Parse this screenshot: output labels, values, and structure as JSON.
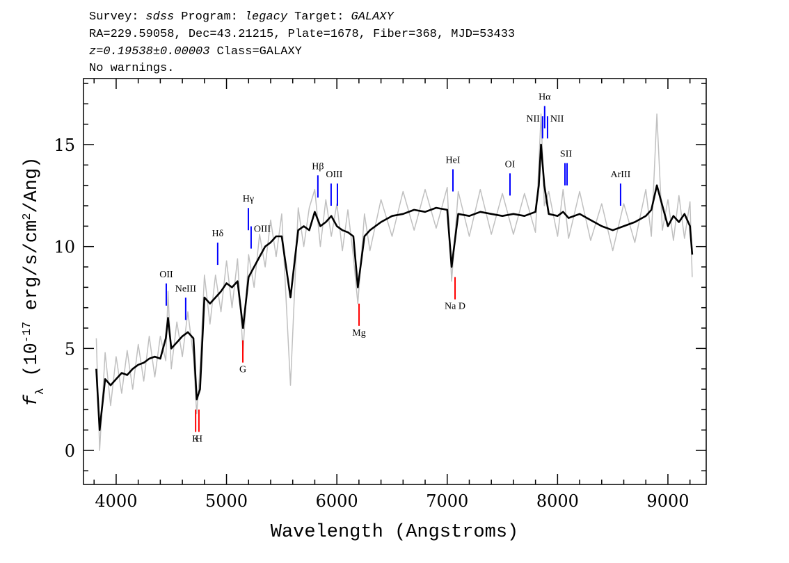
{
  "chart_data": {
    "type": "line",
    "header": {
      "survey_label": "Survey:",
      "survey": "sdss",
      "program_label": "Program:",
      "program": "legacy",
      "target_label": "Target:",
      "target": "GALAXY",
      "line2": "RA=229.59058, Dec=43.21215, Plate=1678, Fiber=368, MJD=53433",
      "redshift": "z=0.19538±0.00003",
      "class": "Class=GALAXY",
      "warnings": "No warnings."
    },
    "xlabel": "Wavelength (Angstroms)",
    "ylabel": [
      [
        "f",
        "italic"
      ],
      [
        "λ",
        "sub"
      ],
      [
        " (10",
        "normal"
      ],
      [
        "-17",
        "sup"
      ],
      [
        " erg/s/cm",
        "normal"
      ],
      [
        "2",
        "sup"
      ],
      [
        "/Ang)",
        "normal"
      ]
    ],
    "xlim": [
      3704,
      9347
    ],
    "ylim": [
      -1.67,
      18.24
    ],
    "xticks": [
      4000,
      5000,
      6000,
      7000,
      8000,
      9000
    ],
    "yticks": [
      0,
      5,
      10,
      15
    ],
    "x_minor_ticks": [
      3800,
      4200,
      4400,
      4600,
      4800,
      5200,
      5400,
      5600,
      5800,
      6200,
      6400,
      6600,
      6800,
      7200,
      7400,
      7600,
      7800,
      8200,
      8400,
      8600,
      8800,
      9200
    ],
    "y_minor_ticks": [
      -1,
      1,
      2,
      3,
      4,
      6,
      7,
      8,
      9,
      11,
      12,
      13,
      14,
      16,
      17,
      18
    ],
    "x": [
      3820,
      3850,
      3900,
      3950,
      4000,
      4050,
      4100,
      4150,
      4200,
      4250,
      4300,
      4350,
      4400,
      4450,
      4470,
      4500,
      4550,
      4600,
      4650,
      4700,
      4730,
      4760,
      4800,
      4850,
      4900,
      4950,
      5000,
      5050,
      5100,
      5150,
      5200,
      5250,
      5300,
      5350,
      5400,
      5450,
      5500,
      5580,
      5650,
      5700,
      5750,
      5800,
      5850,
      5900,
      5950,
      6000,
      6050,
      6100,
      6150,
      6190,
      6250,
      6300,
      6400,
      6500,
      6600,
      6700,
      6800,
      6900,
      7000,
      7040,
      7100,
      7200,
      7300,
      7400,
      7500,
      7600,
      7700,
      7800,
      7830,
      7850,
      7880,
      7920,
      8000,
      8050,
      8100,
      8200,
      8300,
      8400,
      8500,
      8600,
      8700,
      8800,
      8850,
      8900,
      8950,
      9000,
      9050,
      9100,
      9150,
      9200,
      9220
    ],
    "series": [
      {
        "color": "#c0c0c0",
        "values": [
          5.5,
          0.0,
          4.8,
          2.2,
          4.6,
          2.8,
          4.9,
          3.0,
          5.2,
          3.4,
          5.6,
          3.6,
          5.6,
          4.4,
          7.8,
          4.0,
          6.3,
          4.6,
          6.8,
          4.6,
          1.8,
          4.0,
          8.6,
          6.2,
          8.6,
          6.8,
          9.3,
          7.0,
          9.4,
          4.8,
          9.6,
          8.0,
          10.6,
          9.0,
          11.3,
          9.5,
          11.6,
          3.2,
          11.9,
          10.0,
          11.9,
          12.8,
          10.0,
          12.3,
          10.5,
          12.1,
          9.8,
          11.8,
          9.5,
          7.2,
          11.6,
          9.8,
          12.3,
          10.5,
          12.7,
          10.8,
          12.8,
          10.9,
          12.9,
          8.3,
          12.7,
          10.5,
          12.8,
          10.6,
          12.6,
          10.6,
          12.6,
          10.7,
          14.0,
          16.5,
          12.0,
          12.7,
          10.5,
          12.8,
          10.4,
          12.7,
          10.3,
          12.1,
          9.8,
          12.1,
          10.2,
          12.8,
          10.5,
          16.5,
          10.8,
          12.3,
          10.3,
          12.5,
          10.4,
          12.2,
          8.5
        ]
      },
      {
        "color": "#000000",
        "values": [
          4.0,
          1.0,
          3.5,
          3.2,
          3.5,
          3.8,
          3.7,
          4.0,
          4.2,
          4.3,
          4.5,
          4.6,
          4.5,
          5.5,
          6.5,
          5.0,
          5.3,
          5.6,
          5.8,
          5.5,
          2.5,
          3.0,
          7.5,
          7.2,
          7.5,
          7.8,
          8.2,
          8.0,
          8.3,
          6.0,
          8.5,
          9.0,
          9.5,
          10.0,
          10.2,
          10.5,
          10.5,
          7.5,
          10.8,
          11.0,
          10.8,
          11.7,
          11.0,
          11.2,
          11.5,
          11.0,
          10.8,
          10.7,
          10.5,
          8.0,
          10.5,
          10.8,
          11.2,
          11.5,
          11.6,
          11.8,
          11.7,
          11.9,
          11.8,
          9.0,
          11.6,
          11.5,
          11.7,
          11.6,
          11.5,
          11.6,
          11.5,
          11.7,
          13.0,
          15.0,
          13.0,
          11.6,
          11.5,
          11.7,
          11.4,
          11.6,
          11.3,
          11.0,
          10.8,
          11.0,
          11.2,
          11.5,
          11.8,
          13.0,
          12.0,
          11.0,
          11.5,
          11.2,
          11.6,
          11.0,
          9.6
        ]
      }
    ],
    "emission_color": "#0000ff",
    "absorption_color": "#ff0000",
    "lines": [
      {
        "label": "OII",
        "kind": "emission",
        "x": [
          4454
        ],
        "y": 7.1
      },
      {
        "label": "NeIII",
        "kind": "emission",
        "x": [
          4630
        ],
        "y": 6.4
      },
      {
        "label": "Hδ",
        "kind": "emission",
        "x": [
          4920
        ],
        "y": 9.1
      },
      {
        "label": "Hγ",
        "kind": "emission",
        "x": [
          5198
        ],
        "y": 10.8
      },
      {
        "label": "OIII",
        "kind": "emission",
        "x": [
          5223
        ],
        "y": 9.9,
        "align": "right"
      },
      {
        "label": "Hβ",
        "kind": "emission",
        "x": [
          5828
        ],
        "y": 12.4
      },
      {
        "label": "OIII",
        "kind": "emission",
        "x": [
          5948,
          6005
        ],
        "y": 12.0
      },
      {
        "label": "HeI",
        "kind": "emission",
        "x": [
          7052
        ],
        "y": 12.7
      },
      {
        "label": "OI",
        "kind": "emission",
        "x": [
          7569
        ],
        "y": 12.5
      },
      {
        "label": "NII",
        "kind": "emission",
        "x": [
          7864
        ],
        "y": 15.3,
        "align": "left"
      },
      {
        "label": "Hα",
        "kind": "emission",
        "x": [
          7883
        ],
        "y": 15.8
      },
      {
        "label": "NII",
        "kind": "emission",
        "x": [
          7909
        ],
        "y": 15.3,
        "align": "right"
      },
      {
        "label": "SII",
        "kind": "emission",
        "x": [
          8067,
          8086
        ],
        "y": 13.0
      },
      {
        "label": "ArIII",
        "kind": "emission",
        "x": [
          8571
        ],
        "y": 12.0
      },
      {
        "label": "K",
        "kind": "absorption",
        "x": [
          4720
        ],
        "y": 2.0
      },
      {
        "label": "H",
        "kind": "absorption",
        "x": [
          4750
        ],
        "y": 2.0
      },
      {
        "label": "G",
        "kind": "absorption",
        "x": [
          5148
        ],
        "y": 5.4
      },
      {
        "label": "Mg",
        "kind": "absorption",
        "x": [
          6201
        ],
        "y": 7.2
      },
      {
        "label": "Na D",
        "kind": "absorption",
        "x": [
          7071
        ],
        "y": 8.5
      }
    ]
  }
}
